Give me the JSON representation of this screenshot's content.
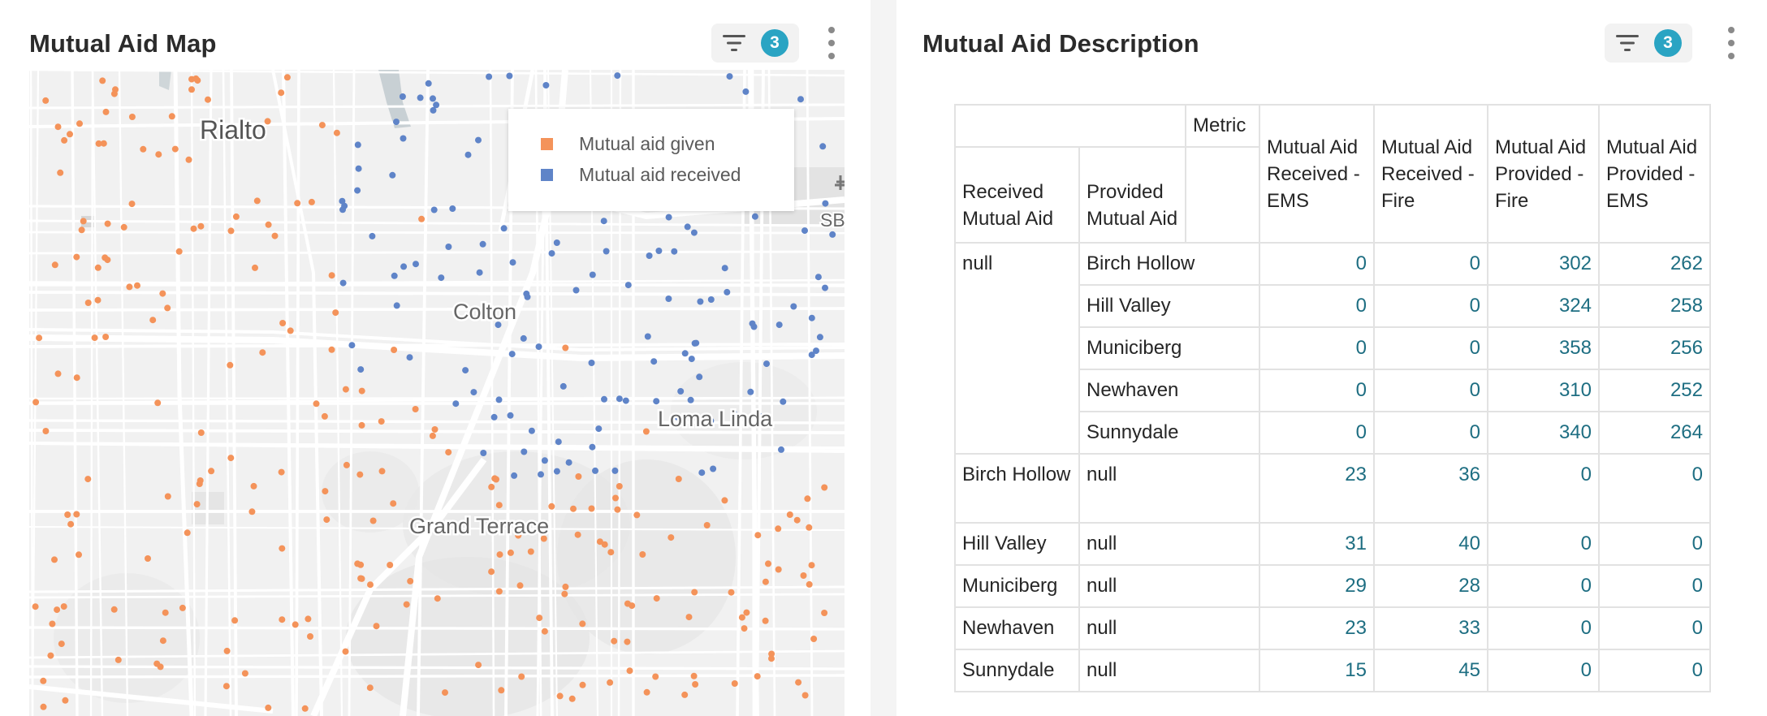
{
  "map_panel": {
    "title": "Mutual Aid Map",
    "filter_count": "3",
    "legend": {
      "items": [
        {
          "label": "Mutual aid given",
          "color": "#f4935a"
        },
        {
          "label": "Mutual aid received",
          "color": "#5f84c8"
        }
      ]
    },
    "place_labels": [
      "Rialto",
      "Colton",
      "Loma Linda",
      "Grand Terrace",
      "SB"
    ],
    "colors": {
      "given": "#f4935a",
      "received": "#5f84c8",
      "road": "#ffffff",
      "land": "#f1f1f1"
    }
  },
  "description_panel": {
    "title": "Mutual Aid Description",
    "filter_count": "3",
    "table": {
      "metric_header": "Metric",
      "row_headers": [
        "Received Mutual Aid",
        "Provided Mutual Aid"
      ],
      "columns": [
        "Mutual Aid Received - EMS",
        "Mutual Aid Received - Fire",
        "Mutual Aid Provided - Fire",
        "Mutual Aid Provided - EMS"
      ],
      "null_group": {
        "received": "null",
        "rows": [
          {
            "provided": "Birch Hollow",
            "values": [
              "0",
              "0",
              "302",
              "262"
            ]
          },
          {
            "provided": "Hill Valley",
            "values": [
              "0",
              "0",
              "324",
              "258"
            ]
          },
          {
            "provided": "Municiberg",
            "values": [
              "0",
              "0",
              "358",
              "256"
            ]
          },
          {
            "provided": "Newhaven",
            "values": [
              "0",
              "0",
              "310",
              "252"
            ]
          },
          {
            "provided": "Sunnydale",
            "values": [
              "0",
              "0",
              "340",
              "264"
            ]
          }
        ]
      },
      "received_rows": [
        {
          "received": "Birch Hollow",
          "provided": "null",
          "values": [
            "23",
            "36",
            "0",
            "0"
          ]
        },
        {
          "received": "Hill Valley",
          "provided": "null",
          "values": [
            "31",
            "40",
            "0",
            "0"
          ]
        },
        {
          "received": "Municiberg",
          "provided": "null",
          "values": [
            "29",
            "28",
            "0",
            "0"
          ]
        },
        {
          "received": "Newhaven",
          "provided": "null",
          "values": [
            "23",
            "33",
            "0",
            "0"
          ]
        },
        {
          "received": "Sunnydale",
          "provided": "null",
          "values": [
            "15",
            "45",
            "0",
            "0"
          ]
        }
      ]
    }
  }
}
